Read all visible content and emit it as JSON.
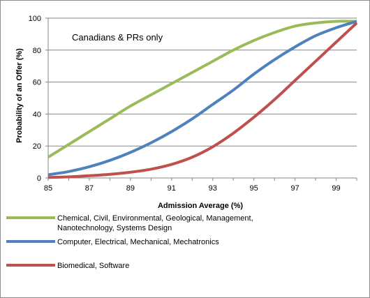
{
  "chart_data": {
    "type": "line",
    "title": "",
    "annotation": "Canadians & PRs only",
    "xlabel": "Admission Average (%)",
    "ylabel": "Probability of an Offer (%)",
    "xlim": [
      85,
      100
    ],
    "ylim": [
      0,
      100
    ],
    "x_ticks": [
      85,
      87,
      89,
      91,
      93,
      95,
      97,
      99
    ],
    "y_ticks": [
      0,
      20,
      40,
      60,
      80,
      100
    ],
    "grid": "horizontal",
    "legend_position": "bottom",
    "series": [
      {
        "name": "Chemical, Civil, Environmental, Geological, Management, Nanotechnology, Systems Design",
        "color": "#9BBB59",
        "x": [
          85,
          86,
          87,
          88,
          89,
          90,
          91,
          92,
          93,
          94,
          95,
          96,
          97,
          98,
          99,
          100
        ],
        "values": [
          13,
          21,
          29,
          37,
          45,
          52,
          59,
          66,
          73,
          80,
          86,
          91,
          95,
          97,
          98,
          98
        ]
      },
      {
        "name": "Computer, Electrical, Mechanical, Mechatronics",
        "color": "#4F81BD",
        "x": [
          85,
          86,
          87,
          88,
          89,
          90,
          91,
          92,
          93,
          94,
          95,
          96,
          97,
          98,
          99,
          100
        ],
        "values": [
          2,
          4,
          7,
          11,
          16,
          22,
          29,
          37,
          46,
          55,
          65,
          74,
          82,
          89,
          94,
          98
        ]
      },
      {
        "name": "Biomedical, Software",
        "color": "#C0504D",
        "x": [
          85,
          86,
          87,
          88,
          89,
          90,
          91,
          92,
          93,
          94,
          95,
          96,
          97,
          98,
          99,
          100
        ],
        "values": [
          0.3,
          0.7,
          1.4,
          2.3,
          3.6,
          5.5,
          8.5,
          13,
          19.5,
          28,
          38,
          49,
          61,
          73,
          85,
          97
        ]
      }
    ]
  }
}
